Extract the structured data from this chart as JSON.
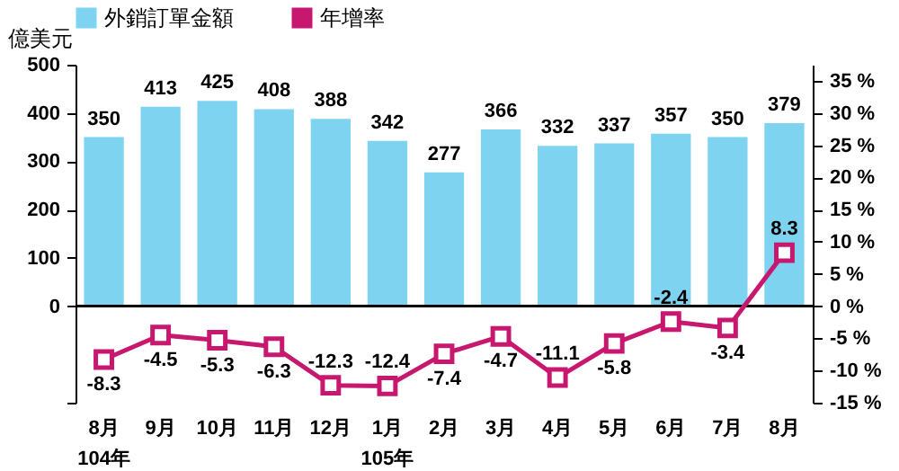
{
  "chart_data": {
    "type": "line",
    "ylabel": "億美元",
    "categories": [
      "8月\n104年",
      "9月",
      "10月",
      "11月",
      "12月",
      "1月\n105年",
      "2月",
      "3月",
      "4月",
      "5月",
      "6月",
      "7月",
      "8月"
    ],
    "series": [
      {
        "name": "外銷訂單金額",
        "type": "bar",
        "color": "#7dd3f0",
        "values": [
          350,
          413,
          425,
          408,
          388,
          342,
          277,
          366,
          332,
          337,
          357,
          350,
          379
        ]
      },
      {
        "name": "年增率",
        "axis": "y2",
        "color": "#c8176e",
        "values": [
          -8.3,
          -4.5,
          -5.3,
          -6.3,
          -12.3,
          -12.4,
          -7.4,
          -4.7,
          -11.1,
          -5.8,
          -2.4,
          -3.4,
          8.3
        ]
      }
    ],
    "ylim": [
      -200,
      500
    ],
    "yticks": [
      {
        "value": -200,
        "label": null
      },
      0,
      100,
      200,
      300,
      400,
      500
    ],
    "y2lim": [
      -15,
      37.5
    ],
    "y2ticks": [
      {
        "value": -15,
        "label": "-15 %"
      },
      {
        "value": -10,
        "label": "-10 %"
      },
      {
        "value": -5,
        "label": "-5 %"
      },
      {
        "value": 0,
        "label": "0 %"
      },
      {
        "value": 5,
        "label": "5 %"
      },
      {
        "value": 10,
        "label": "10 %"
      },
      {
        "value": 15,
        "label": "15 %"
      },
      {
        "value": 20,
        "label": "20 %"
      },
      {
        "value": 25,
        "label": "25 %"
      },
      {
        "value": 30,
        "label": "30 %"
      },
      {
        "value": 35,
        "label": "35 %"
      }
    ],
    "ref_lines": [
      {
        "axis": "y",
        "value": 0,
        "color": "#000000"
      }
    ],
    "data_labels": true,
    "legend": "top",
    "marker": "square",
    "grid": false
  }
}
